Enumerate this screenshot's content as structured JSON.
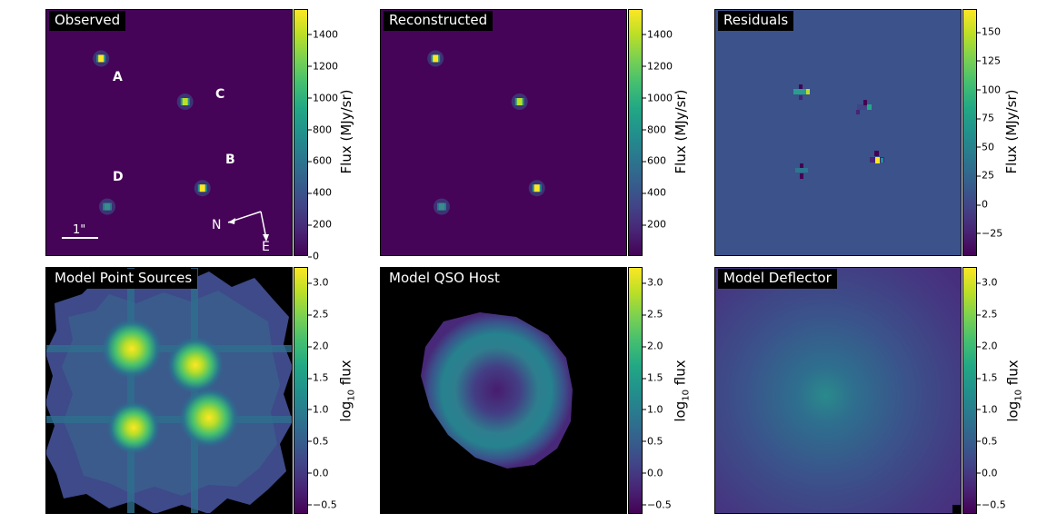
{
  "colors": {
    "viridis": [
      "#440154",
      "#482475",
      "#414487",
      "#355f8d",
      "#2a788e",
      "#21918c",
      "#22a884",
      "#44bf70",
      "#7ad151",
      "#bddf26",
      "#fde725"
    ],
    "background": "#ffffff",
    "black": "#000000"
  },
  "chart_data": [
    {
      "type": "heatmap",
      "title": "Observed",
      "colorbar_label": "Flux (MJy/sr)",
      "colorbar_range": [
        0,
        1560
      ],
      "colorbar_ticks": [
        "0",
        "200",
        "400",
        "600",
        "800",
        "1000",
        "1200",
        "1400"
      ],
      "tick_values": [
        0,
        200,
        400,
        600,
        800,
        1000,
        1200,
        1400
      ],
      "background_level": 0.02,
      "sources": [
        {
          "name": "A",
          "label": "A",
          "x": -0.55,
          "y": 0.6,
          "peak": 1.0
        },
        {
          "name": "C",
          "label": "C",
          "x": 0.13,
          "y": 0.25,
          "peak": 0.9
        },
        {
          "name": "B",
          "label": "B",
          "x": 0.27,
          "y": -0.45,
          "peak": 1.0
        },
        {
          "name": "D",
          "label": "D",
          "x": -0.5,
          "y": -0.6,
          "peak": 0.4
        }
      ],
      "scale_bar_label": "1\"",
      "compass": {
        "north": "N",
        "east": "E"
      }
    },
    {
      "type": "heatmap",
      "title": "Reconstructed",
      "colorbar_label": "Flux (MJy/sr)",
      "colorbar_range": [
        0,
        1560
      ],
      "colorbar_ticks": [
        "200",
        "400",
        "600",
        "800",
        "1000",
        "1200",
        "1400"
      ],
      "tick_values": [
        200,
        400,
        600,
        800,
        1000,
        1200,
        1400
      ],
      "background_level": 0.02,
      "sources": [
        {
          "name": "A",
          "x": -0.55,
          "y": 0.6,
          "peak": 1.0
        },
        {
          "name": "C",
          "x": 0.13,
          "y": 0.25,
          "peak": 0.9
        },
        {
          "name": "B",
          "x": 0.27,
          "y": -0.45,
          "peak": 1.0
        },
        {
          "name": "D",
          "x": -0.5,
          "y": -0.6,
          "peak": 0.4
        }
      ]
    },
    {
      "type": "heatmap",
      "title": "Residuals",
      "colorbar_label": "Flux (MJy/sr)",
      "colorbar_range": [
        -45,
        170
      ],
      "colorbar_ticks": [
        "150",
        "125",
        "100",
        "75",
        "50",
        "25",
        "0",
        "−25"
      ],
      "tick_values": [
        150,
        125,
        100,
        75,
        50,
        25,
        0,
        -25
      ],
      "background_level": 0.23
    },
    {
      "type": "heatmap",
      "title": "Model Point Sources",
      "colorbar_label": "log10 flux",
      "colorbar_range": [
        -0.65,
        3.25
      ],
      "colorbar_ticks": [
        "3.0",
        "2.5",
        "2.0",
        "1.5",
        "1.0",
        "0.5",
        "0.0",
        "−0.5"
      ],
      "tick_values": [
        3.0,
        2.5,
        2.0,
        1.5,
        1.0,
        0.5,
        0.0,
        -0.5
      ]
    },
    {
      "type": "heatmap",
      "title": "Model QSO Host",
      "colorbar_label": "log10 flux",
      "colorbar_range": [
        -0.65,
        3.25
      ],
      "colorbar_ticks": [
        "3.0",
        "2.5",
        "2.0",
        "1.5",
        "1.0",
        "0.5",
        "0.0",
        "−0.5"
      ],
      "tick_values": [
        3.0,
        2.5,
        2.0,
        1.5,
        1.0,
        0.5,
        0.0,
        -0.5
      ]
    },
    {
      "type": "heatmap",
      "title": "Model Deflector",
      "colorbar_label": "log10 flux",
      "colorbar_range": [
        -0.65,
        3.25
      ],
      "colorbar_ticks": [
        "3.0",
        "2.5",
        "2.0",
        "1.5",
        "1.0",
        "0.5",
        "0.0",
        "−0.5"
      ],
      "tick_values": [
        3.0,
        2.5,
        2.0,
        1.5,
        1.0,
        0.5,
        0.0,
        -0.5
      ]
    }
  ],
  "labels": {
    "log_label_base": "log",
    "log_label_sub": "10",
    "log_label_rest": " flux"
  }
}
